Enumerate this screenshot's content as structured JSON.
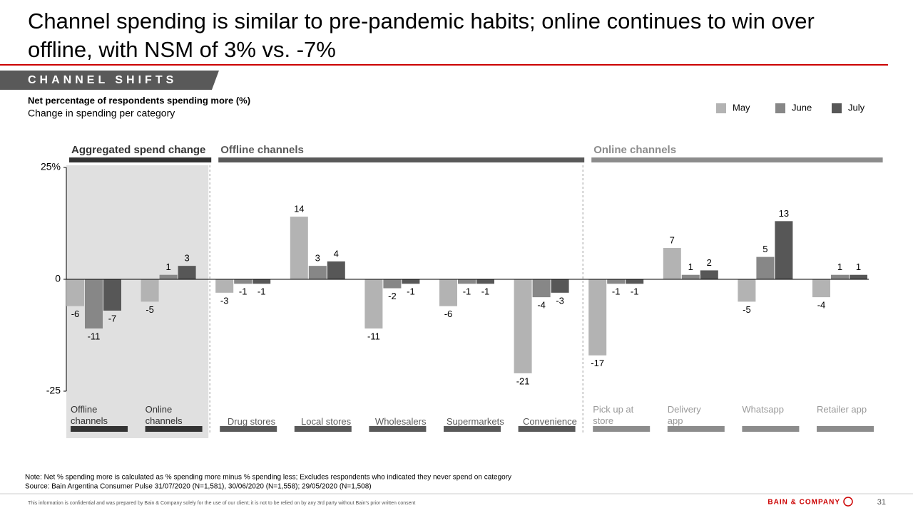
{
  "header": {
    "title": "Channel spending is similar to pre-pandemic habits; online continues to win over offline, with NSM of 3% vs. -7%",
    "section": "CHANNEL SHIFTS"
  },
  "chart_data": {
    "type": "bar",
    "title": "Net percentage of respondents spending more (%)",
    "subtitle": "Change in spending per category",
    "groups": [
      {
        "name": "Aggregated spend change",
        "color": "#333333",
        "categories": [
          "Offline channels",
          "Online channels"
        ]
      },
      {
        "name": "Offline channels",
        "color": "#595959",
        "categories": [
          "Drug stores",
          "Local stores",
          "Wholesalers",
          "Supermarkets",
          "Convenience"
        ]
      },
      {
        "name": "Online channels",
        "color": "#8c8c8c",
        "categories": [
          "Pick up at store",
          "Delivery app",
          "Whatsapp",
          "Retailer app"
        ]
      }
    ],
    "series": [
      {
        "name": "May",
        "color": "#b3b3b3",
        "values": [
          -6,
          -5,
          -3,
          14,
          -11,
          -6,
          -21,
          -17,
          7,
          -5,
          -4
        ]
      },
      {
        "name": "June",
        "color": "#878787",
        "values": [
          -11,
          1,
          -1,
          3,
          -2,
          -1,
          -4,
          -1,
          1,
          5,
          1
        ]
      },
      {
        "name": "July",
        "color": "#575757",
        "values": [
          -7,
          3,
          -1,
          4,
          -1,
          -1,
          -3,
          -1,
          2,
          13,
          1
        ]
      }
    ],
    "ylim": [
      -25,
      25
    ],
    "yticks": [
      -25,
      0,
      {
        "value": 25,
        "label": "25%"
      }
    ],
    "legend": "top-right"
  },
  "footer": {
    "note": "Note: Net % spending more is calculated as % spending more minus % spending less; Excludes respondents who indicated they never spend on category",
    "source": "Source: Bain Argentina Consumer Pulse 31/07/2020 (N=1,581), 30/06/2020 (N=1,558); 29/05/2020 (N=1,508)",
    "confidential": "This information is confidential and was prepared by Bain & Company solely for the use of our client; it is not to be relied on by any 3rd party without Bain's prior written consent",
    "brand": "BAIN & COMPANY",
    "page": 31
  }
}
